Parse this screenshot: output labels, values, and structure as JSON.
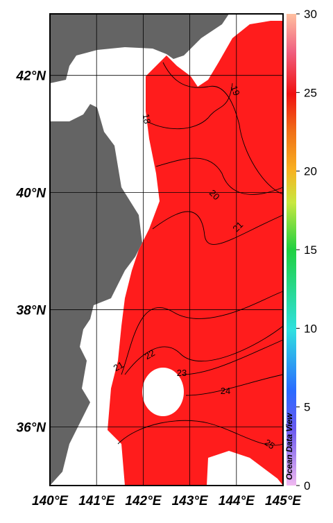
{
  "map": {
    "xlim": [
      140,
      145
    ],
    "ylim": [
      35,
      43.05
    ],
    "xticks": [
      {
        "value": 140,
        "label": "140°E"
      },
      {
        "value": 141,
        "label": "141°E"
      },
      {
        "value": 142,
        "label": "142°E"
      },
      {
        "value": 143,
        "label": "143°E"
      },
      {
        "value": 144,
        "label": "144°E"
      },
      {
        "value": 145,
        "label": "145°E"
      }
    ],
    "yticks": [
      {
        "value": 36,
        "label": "36°N"
      },
      {
        "value": 38,
        "label": "38°N"
      },
      {
        "value": 40,
        "label": "40°N"
      },
      {
        "value": 42,
        "label": "42°N"
      }
    ],
    "grid": true,
    "contour_labels": [
      19,
      18,
      20,
      21,
      21,
      22,
      23,
      24,
      25
    ],
    "colorbar": {
      "lim": [
        0,
        30
      ],
      "ticks": [
        0,
        5,
        10,
        15,
        20,
        25,
        30
      ]
    },
    "watermark": "Ocean Data View"
  }
}
